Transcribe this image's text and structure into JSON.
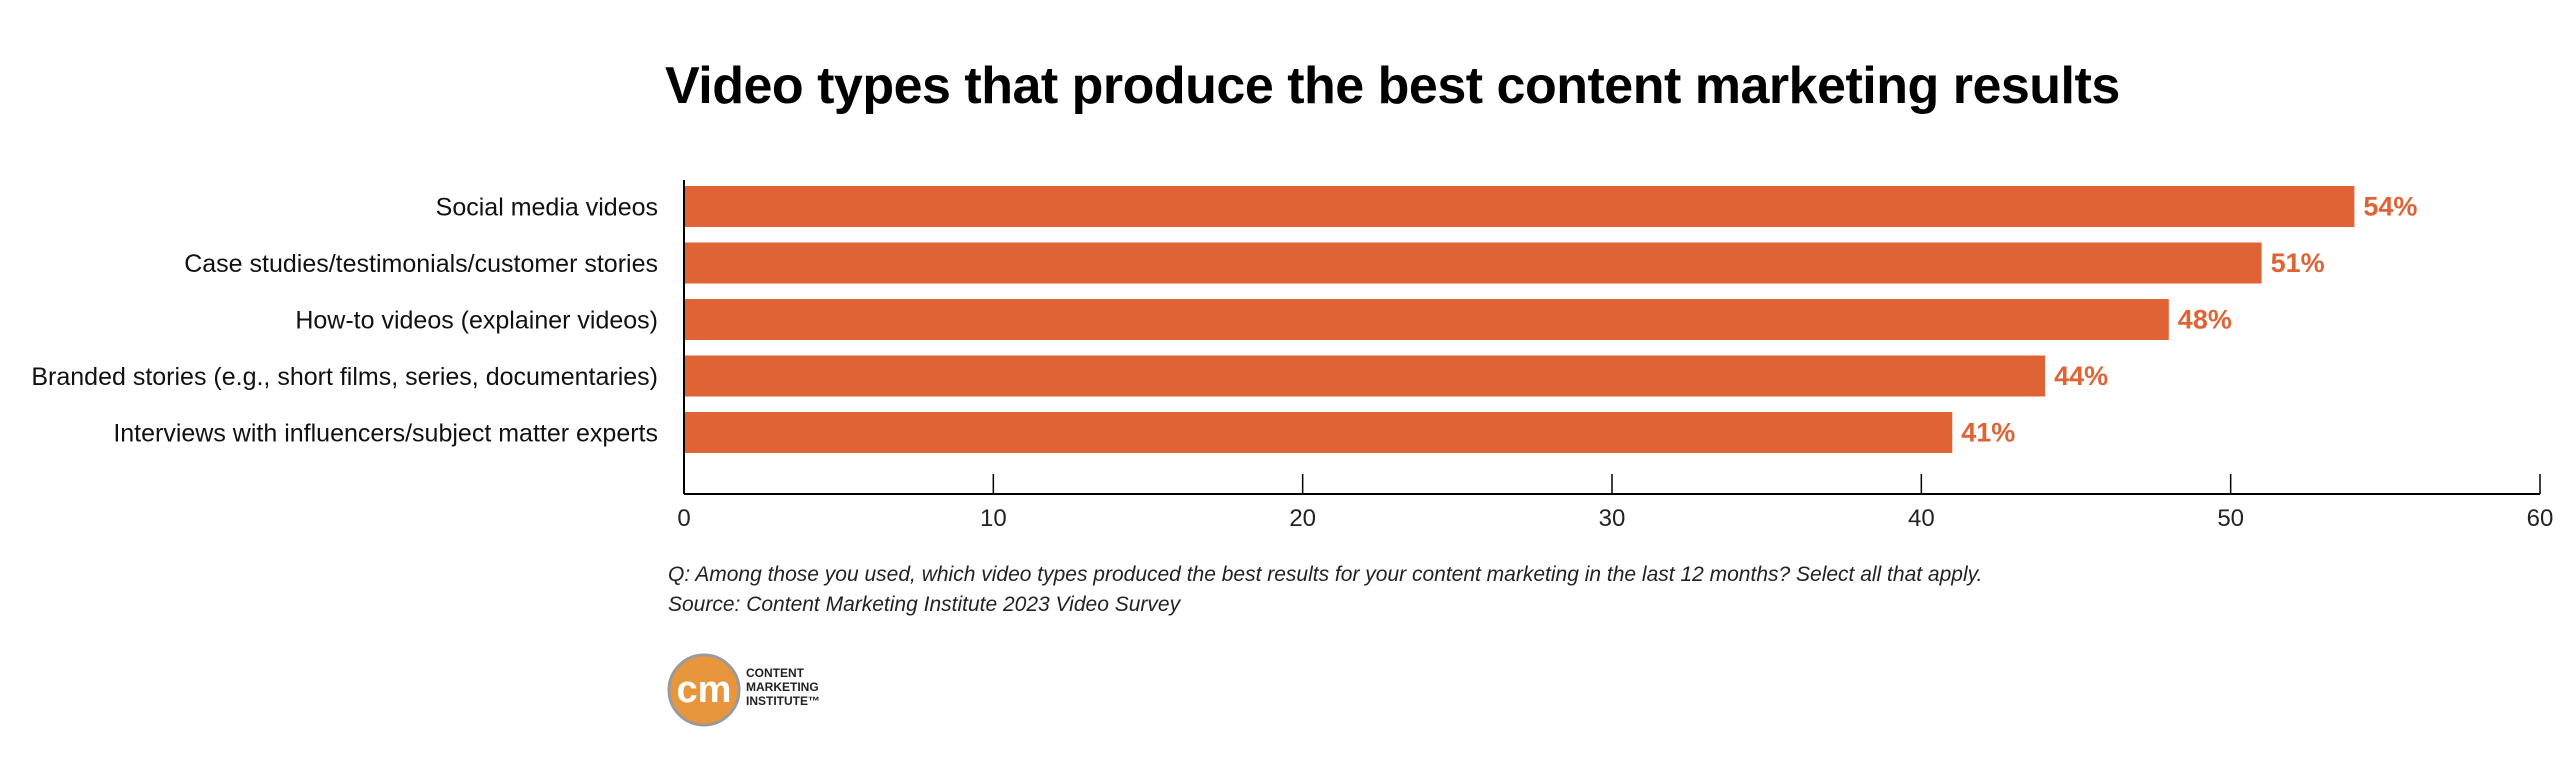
{
  "chart_data": {
    "type": "bar",
    "orientation": "horizontal",
    "title": "Video types that produce the best content marketing results",
    "categories": [
      "Social media videos",
      "Case studies/testimonials/customer stories",
      "How-to videos (explainer videos)",
      "Branded stories (e.g., short films, series, documentaries)",
      "Interviews with influencers/subject matter experts"
    ],
    "values": [
      54,
      51,
      48,
      44,
      41
    ],
    "data_labels": [
      "54%",
      "51%",
      "48%",
      "44%",
      "41%"
    ],
    "xlim": [
      0,
      60
    ],
    "x_ticks": [
      0,
      10,
      20,
      30,
      40,
      50,
      60
    ],
    "grid": false,
    "bar_color": "#E06336",
    "label_color": "#E06336"
  },
  "notes": {
    "question": "Q: Among those you used, which video types produced the best results for your content marketing in the last 12 months? Select all that apply.",
    "source": "Source: Content Marketing Institute 2023 Video Survey"
  },
  "logo": {
    "monogram": "cm",
    "line1": "CONTENT",
    "line2": "MARKETING",
    "line3": "INSTITUTE™",
    "color": "#E8963C"
  }
}
